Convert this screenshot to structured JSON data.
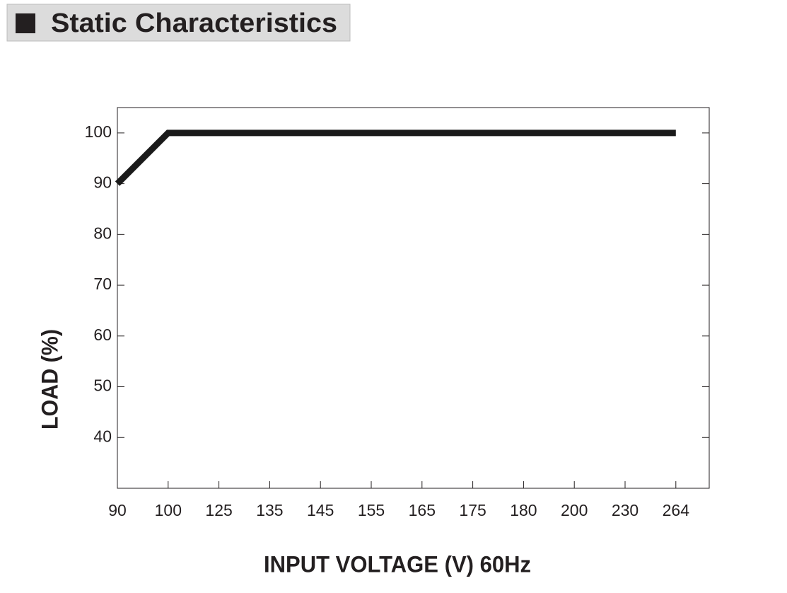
{
  "chart_data": {
    "type": "line",
    "title": "Static Characteristics",
    "x_label": "INPUT VOLTAGE (V) 60Hz",
    "y_label": "LOAD (%)",
    "categories": [
      "90",
      "100",
      "125",
      "135",
      "145",
      "155",
      "165",
      "175",
      "180",
      "200",
      "230",
      "264"
    ],
    "values": [
      90,
      100,
      100,
      100,
      100,
      100,
      100,
      100,
      100,
      100,
      100,
      100
    ],
    "color": "#1a1a1a",
    "ylim": [
      30,
      105
    ],
    "yticks": [
      40,
      50,
      60,
      70,
      80,
      90,
      100
    ],
    "grid": false
  }
}
